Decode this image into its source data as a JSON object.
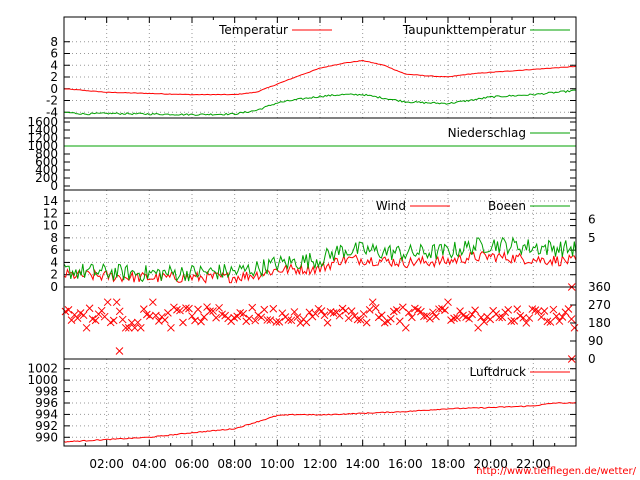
{
  "credit": "http://www.tiefflegen.de/wetter/",
  "colors": {
    "red": "#ff0000",
    "green": "#00a000",
    "grid": "#999999",
    "frame": "#000000"
  },
  "time_labels": [
    "02:00",
    "04:00",
    "06:00",
    "08:00",
    "10:00",
    "12:00",
    "14:00",
    "16:00",
    "18:00",
    "20:00",
    "22:00"
  ],
  "chart_data": [
    {
      "id": "temperature",
      "type": "line",
      "xlim": [
        0,
        24
      ],
      "ylim": [
        -6,
        10
      ],
      "yticks": [
        "8",
        "6",
        "4",
        "2",
        "0",
        "-2",
        "-4"
      ],
      "grid": true,
      "legend_placement": "top-right",
      "series": [
        {
          "name": "Temperatur",
          "color": "#ff0000",
          "noise": 0.05,
          "points": [
            [
              0,
              0
            ],
            [
              1,
              -0.3
            ],
            [
              2,
              -0.6
            ],
            [
              4,
              -0.8
            ],
            [
              6,
              -1.0
            ],
            [
              8,
              -1.0
            ],
            [
              9,
              -0.6
            ],
            [
              10,
              0.8
            ],
            [
              11,
              2.2
            ],
            [
              12,
              3.5
            ],
            [
              13,
              4.3
            ],
            [
              14,
              4.8
            ],
            [
              15,
              4.0
            ],
            [
              16,
              2.5
            ],
            [
              17,
              2.2
            ],
            [
              18,
              2.0
            ],
            [
              19,
              2.5
            ],
            [
              20,
              2.8
            ],
            [
              22,
              3.3
            ],
            [
              24,
              3.8
            ]
          ]
        },
        {
          "name": "Taupunkttemperatur",
          "color": "#00a000",
          "noise": 0.15,
          "points": [
            [
              0,
              -4.0
            ],
            [
              1,
              -4.3
            ],
            [
              2,
              -4.2
            ],
            [
              4,
              -4.3
            ],
            [
              6,
              -4.4
            ],
            [
              8,
              -4.3
            ],
            [
              9,
              -3.7
            ],
            [
              10,
              -2.4
            ],
            [
              11,
              -1.8
            ],
            [
              12,
              -1.3
            ],
            [
              13,
              -1.0
            ],
            [
              14,
              -1.0
            ],
            [
              15,
              -1.6
            ],
            [
              16,
              -2.2
            ],
            [
              17,
              -2.4
            ],
            [
              18,
              -2.5
            ],
            [
              19,
              -2.0
            ],
            [
              20,
              -1.4
            ],
            [
              22,
              -1.0
            ],
            [
              24,
              -0.3
            ]
          ]
        }
      ]
    },
    {
      "id": "precipitation",
      "type": "line",
      "xlim": [
        0,
        24
      ],
      "ylim": [
        0,
        1600
      ],
      "yticks": [
        "1600",
        "1400",
        "1200",
        "1000",
        "800",
        "600",
        "400",
        "200",
        "0"
      ],
      "legend_placement": "top-right",
      "series": [
        {
          "name": "Niederschlag",
          "color": "#00a000",
          "noise": 0,
          "points": [
            [
              0,
              1000
            ],
            [
              24,
              1000
            ]
          ]
        }
      ]
    },
    {
      "id": "wind",
      "type": "line",
      "xlim": [
        0,
        24
      ],
      "ylim": [
        0,
        14
      ],
      "yticks": [
        "14",
        "12",
        "10",
        "8",
        "6",
        "4",
        "2",
        "0"
      ],
      "yticks_right": [
        "6",
        "5"
      ],
      "yticks_right_values": [
        11,
        8
      ],
      "grid": true,
      "legend_placement": "top-right",
      "series": [
        {
          "name": "Wind",
          "color": "#ff0000",
          "noise": 0.9,
          "points": [
            [
              0,
              2.0
            ],
            [
              4,
              1.5
            ],
            [
              8,
              1.6
            ],
            [
              9,
              2.0
            ],
            [
              10,
              2.8
            ],
            [
              12,
              3.0
            ],
            [
              13,
              4.5
            ],
            [
              14,
              4.5
            ],
            [
              16,
              4.0
            ],
            [
              18,
              4.2
            ],
            [
              19,
              4.8
            ],
            [
              20,
              5.0
            ],
            [
              22,
              4.5
            ],
            [
              24,
              4.2
            ]
          ]
        },
        {
          "name": "Boeen",
          "color": "#00a000",
          "noise": 1.4,
          "points": [
            [
              0,
              2.6
            ],
            [
              4,
              2.2
            ],
            [
              8,
              2.5
            ],
            [
              9,
              3.0
            ],
            [
              10,
              3.8
            ],
            [
              12,
              4.5
            ],
            [
              13,
              6.0
            ],
            [
              14,
              6.0
            ],
            [
              16,
              5.5
            ],
            [
              18,
              5.8
            ],
            [
              19,
              6.5
            ],
            [
              20,
              7.0
            ],
            [
              22,
              6.5
            ],
            [
              24,
              6.2
            ]
          ]
        }
      ]
    },
    {
      "id": "wind-direction",
      "type": "scatter",
      "xlim": [
        0,
        24
      ],
      "ylim": [
        0,
        360
      ],
      "yticks_right": [
        "360",
        "270",
        "180",
        "90",
        "0"
      ],
      "series": [
        {
          "color": "#ff0000",
          "marker": "x",
          "count": 170,
          "center": 220,
          "spread": 40
        }
      ]
    },
    {
      "id": "pressure",
      "type": "line",
      "xlim": [
        0,
        24
      ],
      "ylim": [
        989,
        1003
      ],
      "yticks": [
        "1002",
        "1000",
        "998",
        "996",
        "994",
        "992",
        "990"
      ],
      "grid": true,
      "legend_placement": "top-right",
      "series": [
        {
          "name": "Luftdruck",
          "color": "#ff0000",
          "noise": 0.08,
          "points": [
            [
              0,
              989.2
            ],
            [
              2,
              989.6
            ],
            [
              4,
              990.0
            ],
            [
              6,
              990.8
            ],
            [
              8,
              991.5
            ],
            [
              10,
              993.8
            ],
            [
              11,
              994.0
            ],
            [
              12,
              993.9
            ],
            [
              14,
              994.2
            ],
            [
              16,
              994.5
            ],
            [
              18,
              995.0
            ],
            [
              20,
              995.2
            ],
            [
              22,
              995.5
            ],
            [
              23,
              996.0
            ],
            [
              24,
              996.0
            ]
          ]
        }
      ]
    }
  ]
}
